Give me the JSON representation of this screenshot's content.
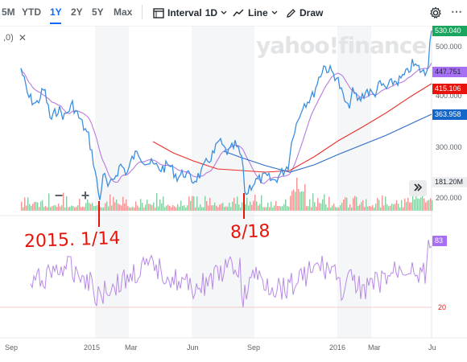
{
  "toolbar": {
    "ranges": [
      "5M",
      "YTD",
      "1Y",
      "2Y",
      "5Y",
      "Max"
    ],
    "active_range": "1Y",
    "interval_label": "Interval",
    "interval_value": "1D",
    "chart_type_label": "Line",
    "draw_label": "Draw"
  },
  "indicator_chip": {
    "label": ",0)"
  },
  "watermark": "yahoo!finance",
  "price_axis": {
    "ticks": [
      "500.000",
      "400.000",
      "300.000",
      "200.000"
    ],
    "tags": [
      {
        "text": "530.040",
        "color": "#19a55e",
        "text_color": "#ffffff"
      },
      {
        "text": "447.751",
        "color": "#a66ff4",
        "text_color": "#232a31"
      },
      {
        "text": "415.106",
        "color": "#e8140c",
        "text_color": "#ffffff"
      },
      {
        "text": "363.958",
        "color": "#1466c9",
        "text_color": "#ffffff"
      },
      {
        "text": "181.20M",
        "color": "#eceef0",
        "text_color": "#232a31"
      }
    ]
  },
  "oscillator_axis": {
    "top_tag": "83",
    "bottom_label": "20"
  },
  "x_axis": {
    "labels": [
      "Sep",
      "2015",
      "Mar",
      "Jun",
      "Sep",
      "2016",
      "Mar",
      "Ju"
    ]
  },
  "annotations": {
    "left": "2015. 1/14",
    "right": "8/18"
  },
  "controls": {
    "zoom_out": "−",
    "zoom_in": "+"
  },
  "colors": {
    "price_line": "#3b8fe0",
    "ma_purple": "#b77bdd",
    "ma_red": "#e8302a",
    "ma_blue": "#2d6bc4",
    "osc_line": "#b78ae8",
    "vol_up": "#7cc79a",
    "vol_down": "#f08a8a",
    "accent": "#0f69ff"
  }
}
